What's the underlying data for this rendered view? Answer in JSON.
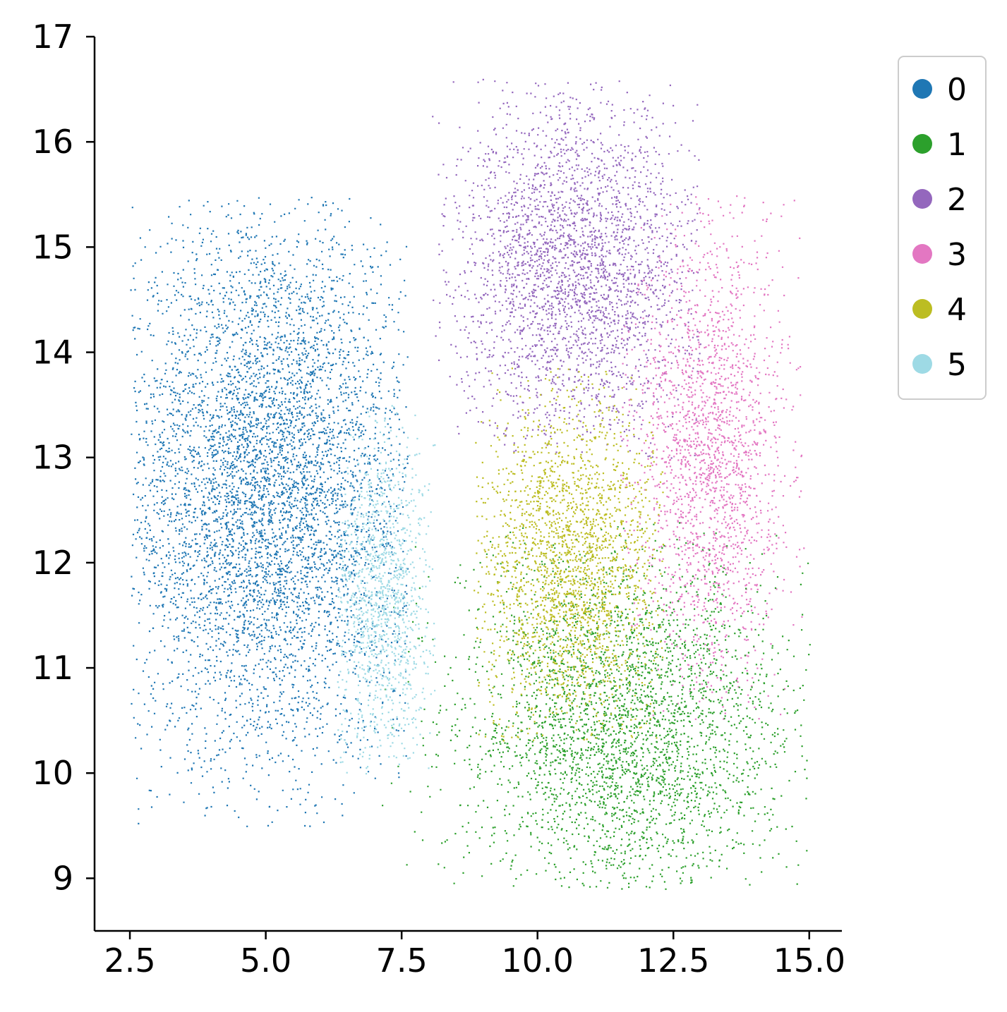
{
  "chart_data": {
    "type": "scatter",
    "title": "",
    "xlabel": "",
    "ylabel": "",
    "xlim": [
      1.85,
      15.6
    ],
    "ylim": [
      8.5,
      17.0
    ],
    "x_ticks": [
      "2.5",
      "5.0",
      "7.5",
      "10.0",
      "12.5",
      "15.0"
    ],
    "y_ticks": [
      "9",
      "10",
      "11",
      "12",
      "13",
      "14",
      "15",
      "16",
      "17"
    ],
    "grid": false,
    "legend_position": "upper right, outside plot",
    "series": [
      {
        "name": "0",
        "color": "#1f77b4",
        "approx_points": 28000,
        "center": [
          5.0,
          12.7
        ],
        "spread": [
          1.35,
          1.3
        ],
        "x_range": [
          2.5,
          7.6
        ],
        "y_range": [
          9.5,
          15.5
        ]
      },
      {
        "name": "1",
        "color": "#2ca02c",
        "approx_points": 16000,
        "center": [
          11.6,
          10.4
        ],
        "spread": [
          1.5,
          0.85
        ],
        "x_range": [
          7.0,
          15.0
        ],
        "y_range": [
          8.9,
          12.4
        ]
      },
      {
        "name": "2",
        "color": "#9467bd",
        "approx_points": 14000,
        "center": [
          10.7,
          14.8
        ],
        "spread": [
          1.1,
          0.8
        ],
        "x_range": [
          8.0,
          13.0
        ],
        "y_range": [
          13.0,
          16.6
        ]
      },
      {
        "name": "3",
        "color": "#e377c2",
        "approx_points": 10000,
        "center": [
          13.2,
          13.0
        ],
        "spread": [
          0.7,
          1.1
        ],
        "x_range": [
          11.5,
          14.9
        ],
        "y_range": [
          10.5,
          15.5
        ]
      },
      {
        "name": "4",
        "color": "#bcbd22",
        "approx_points": 11000,
        "center": [
          10.6,
          12.0
        ],
        "spread": [
          0.9,
          0.8
        ],
        "x_range": [
          8.8,
          12.3
        ],
        "y_range": [
          10.3,
          13.9
        ]
      },
      {
        "name": "5",
        "color": "#9edae5",
        "approx_points": 6000,
        "center": [
          7.1,
          11.6
        ],
        "spread": [
          0.45,
          0.8
        ],
        "x_range": [
          6.3,
          8.1
        ],
        "y_range": [
          10.0,
          13.5
        ]
      }
    ]
  }
}
